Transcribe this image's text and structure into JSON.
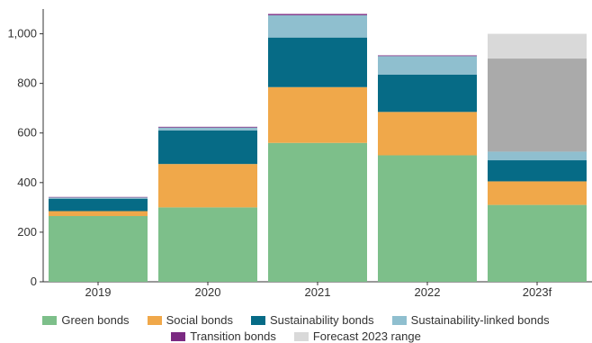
{
  "chart_data": {
    "type": "bar",
    "stacked": true,
    "categories": [
      "2019",
      "2020",
      "2021",
      "2022",
      "2023f"
    ],
    "series": [
      {
        "name": "Green bonds",
        "color": "#7dbf8a",
        "values": [
          265,
          300,
          560,
          510,
          310
        ]
      },
      {
        "name": "Social bonds",
        "color": "#f0a84a",
        "values": [
          20,
          175,
          225,
          175,
          95
        ]
      },
      {
        "name": "Sustainability bonds",
        "color": "#066b86",
        "values": [
          50,
          135,
          200,
          150,
          85
        ]
      },
      {
        "name": "Sustainability-linked bonds",
        "color": "#8fbfcf",
        "values": [
          5,
          12,
          90,
          75,
          35
        ]
      },
      {
        "name": "Transition bonds",
        "color": "#7b2a82",
        "values": [
          2,
          3,
          5,
          3,
          0
        ]
      },
      {
        "name": "Forecast 2023 range",
        "color": "#d9d9d9",
        "values": [
          0,
          0,
          0,
          0,
          475
        ]
      }
    ],
    "forecast_inner_band": {
      "category": "2023f",
      "from": 525,
      "to": 900,
      "color": "#aaaaaa"
    },
    "y_ticks": [
      "0",
      "200",
      "400",
      "600",
      "800",
      "1,000"
    ],
    "y_tick_values": [
      0,
      200,
      400,
      600,
      800,
      1000
    ],
    "ylim": [
      0,
      1100
    ],
    "grid": false,
    "legend_position": "bottom",
    "title": "",
    "xlabel": "",
    "ylabel": ""
  }
}
